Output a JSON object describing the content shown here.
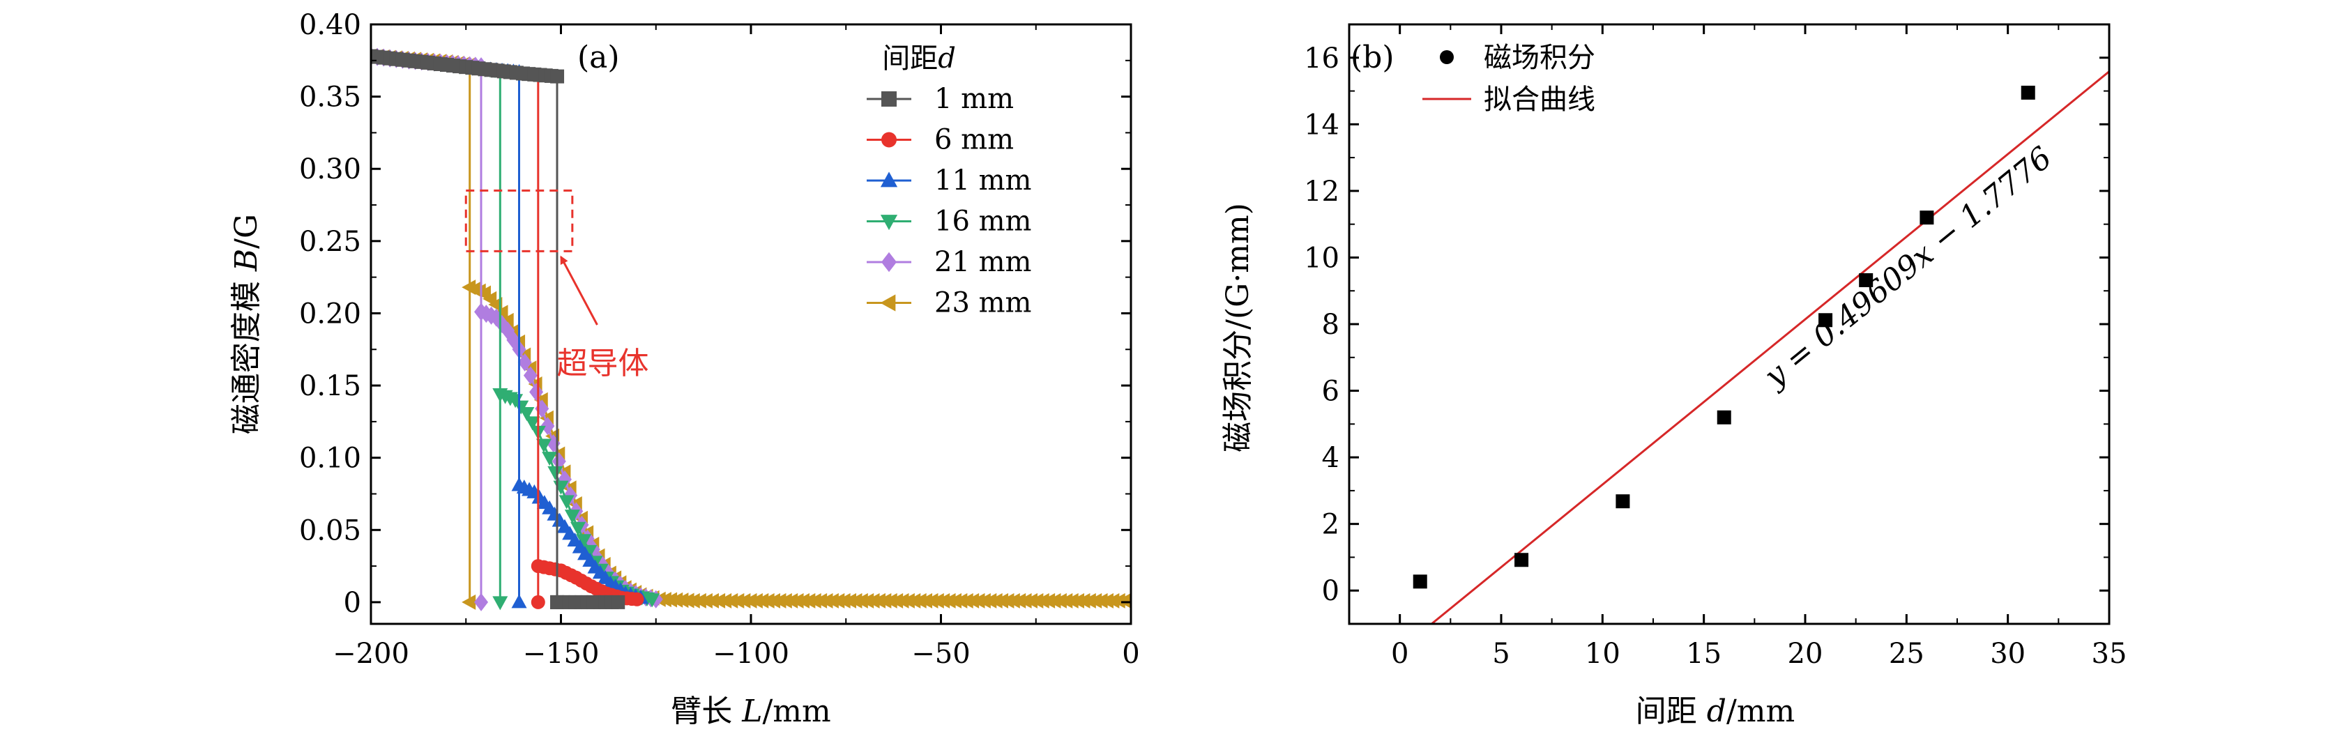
{
  "chart_data": [
    {
      "panel": "(a)",
      "type": "line",
      "xlabel_cn": "臂长",
      "xlabel_var": "L",
      "xlabel_unit": "/mm",
      "ylabel_cn": "磁通密度模",
      "ylabel_var": "B",
      "ylabel_unit": "/G",
      "xlim": [
        -200,
        0
      ],
      "ylim": [
        -0.015,
        0.4
      ],
      "xticks": [
        -200,
        -150,
        -100,
        -50,
        0
      ],
      "xtick_labels": [
        "−200",
        "−150",
        "−100",
        "−50",
        "0"
      ],
      "yticks": [
        0,
        0.05,
        0.1,
        0.15,
        0.2,
        0.25,
        0.3,
        0.35,
        0.4
      ],
      "ytick_labels": [
        "0",
        "0.05",
        "0.10",
        "0.15",
        "0.20",
        "0.25",
        "0.30",
        "0.35",
        "0.40"
      ],
      "legend_title": "间距",
      "legend_title_var": "d",
      "legend_position": "top-right",
      "annotation": {
        "text": "超导体",
        "box_x": [
          -175,
          -147
        ],
        "box_y": [
          0.243,
          0.285
        ],
        "arrow_tip": [
          -150,
          0.242
        ],
        "text_at": [
          -150,
          0.165
        ]
      },
      "series": [
        {
          "name": "1 mm",
          "color": "#555555",
          "marker": "square",
          "gap": [
            -151,
            -151
          ],
          "top_value": 0.364,
          "pre": [
            [
              -200,
              0.378
            ],
            [
              -190,
              0.375
            ],
            [
              -180,
              0.372
            ],
            [
              -170,
              0.369
            ],
            [
              -160,
              0.366
            ],
            [
              -151,
              0.364
            ]
          ],
          "post": [
            [
              -151,
              0.0
            ],
            [
              -135,
              0.0
            ]
          ]
        },
        {
          "name": "6 mm",
          "color": "#e8332c",
          "marker": "circle",
          "gap": [
            -156,
            -156
          ],
          "top_value": 0.365,
          "pre": [
            [
              -200,
              0.378
            ],
            [
              -190,
              0.375
            ],
            [
              -180,
              0.372
            ],
            [
              -170,
              0.369
            ],
            [
              -160,
              0.366
            ],
            [
              -156,
              0.365
            ]
          ],
          "post": [
            [
              -156,
              0.025
            ],
            [
              -150,
              0.022
            ],
            [
              -146,
              0.017
            ],
            [
              -142,
              0.011
            ],
            [
              -138,
              0.006
            ],
            [
              -134,
              0.003
            ],
            [
              -130,
              0.002
            ]
          ]
        },
        {
          "name": "11 mm",
          "color": "#1f5fd2",
          "marker": "triangle-up",
          "gap": [
            -161,
            -161
          ],
          "top_value": 0.367,
          "pre": [
            [
              -200,
              0.378
            ],
            [
              -190,
              0.375
            ],
            [
              -180,
              0.372
            ],
            [
              -170,
              0.369
            ],
            [
              -161,
              0.367
            ]
          ],
          "post": [
            [
              -161,
              0.081
            ],
            [
              -157,
              0.076
            ],
            [
              -153,
              0.065
            ],
            [
              -149,
              0.052
            ],
            [
              -145,
              0.038
            ],
            [
              -141,
              0.024
            ],
            [
              -137,
              0.013
            ],
            [
              -133,
              0.006
            ],
            [
              -129,
              0.003
            ]
          ]
        },
        {
          "name": "16 mm",
          "color": "#2fae72",
          "marker": "triangle-down",
          "gap": [
            -166,
            -166
          ],
          "top_value": 0.368,
          "pre": [
            [
              -200,
              0.378
            ],
            [
              -190,
              0.375
            ],
            [
              -180,
              0.372
            ],
            [
              -170,
              0.369
            ],
            [
              -166,
              0.368
            ]
          ],
          "post": [
            [
              -166,
              0.144
            ],
            [
              -162,
              0.14
            ],
            [
              -159,
              0.131
            ],
            [
              -156,
              0.118
            ],
            [
              -153,
              0.1
            ],
            [
              -150,
              0.08
            ],
            [
              -147,
              0.06
            ],
            [
              -144,
              0.043
            ],
            [
              -141,
              0.028
            ],
            [
              -138,
              0.017
            ],
            [
              -134,
              0.008
            ],
            [
              -130,
              0.004
            ],
            [
              -126,
              0.002
            ]
          ]
        },
        {
          "name": "21 mm",
          "color": "#b07de0",
          "marker": "diamond",
          "gap": [
            -171,
            -171
          ],
          "top_value": 0.371,
          "pre": [
            [
              -200,
              0.378
            ],
            [
              -190,
              0.375
            ],
            [
              -180,
              0.373
            ],
            [
              -171,
              0.371
            ]
          ],
          "post": [
            [
              -171,
              0.201
            ],
            [
              -167,
              0.197
            ],
            [
              -164,
              0.188
            ],
            [
              -161,
              0.175
            ],
            [
              -158,
              0.157
            ],
            [
              -155,
              0.134
            ],
            [
              -152,
              0.11
            ],
            [
              -149,
              0.085
            ],
            [
              -146,
              0.063
            ],
            [
              -143,
              0.044
            ],
            [
              -140,
              0.029
            ],
            [
              -137,
              0.018
            ],
            [
              -133,
              0.009
            ],
            [
              -129,
              0.004
            ],
            [
              -125,
              0.002
            ]
          ]
        },
        {
          "name": "23 mm",
          "color": "#c8961e",
          "marker": "triangle-left",
          "gap": [
            -174,
            -174
          ],
          "top_value": 0.372,
          "pre": [
            [
              -200,
              0.378
            ],
            [
              -190,
              0.376
            ],
            [
              -180,
              0.374
            ],
            [
              -174,
              0.372
            ]
          ],
          "post": [
            [
              -174,
              0.218
            ],
            [
              -170,
              0.214
            ],
            [
              -167,
              0.206
            ],
            [
              -164,
              0.195
            ],
            [
              -161,
              0.18
            ],
            [
              -158,
              0.162
            ],
            [
              -155,
              0.14
            ],
            [
              -152,
              0.115
            ],
            [
              -149,
              0.09
            ],
            [
              -146,
              0.068
            ],
            [
              -143,
              0.048
            ],
            [
              -140,
              0.032
            ],
            [
              -137,
              0.02
            ],
            [
              -133,
              0.01
            ],
            [
              -129,
              0.005
            ],
            [
              -124,
              0.002
            ],
            [
              -115,
              0.001
            ],
            [
              -100,
              0.001
            ],
            [
              -80,
              0.001
            ],
            [
              -60,
              0.001
            ],
            [
              -40,
              0.001
            ],
            [
              -20,
              0.001
            ],
            [
              0,
              0.001
            ]
          ]
        }
      ]
    },
    {
      "panel": "(b)",
      "type": "scatter",
      "xlabel_cn": "间距",
      "xlabel_var": "d",
      "xlabel_unit": "/mm",
      "ylabel": "磁场积分/(G·mm)",
      "xlim": [
        -2.5,
        35
      ],
      "ylim": [
        -1,
        17
      ],
      "xticks": [
        0,
        5,
        10,
        15,
        20,
        25,
        30,
        35
      ],
      "xtick_labels": [
        "0",
        "5",
        "10",
        "15",
        "20",
        "25",
        "30",
        "35"
      ],
      "yticks": [
        0,
        2,
        4,
        6,
        8,
        10,
        12,
        14,
        16
      ],
      "ytick_labels": [
        "0",
        "2",
        "4",
        "6",
        "8",
        "10",
        "12",
        "14",
        "16"
      ],
      "legend": [
        {
          "label": "磁场积分",
          "kind": "marker"
        },
        {
          "label": "拟合曲线",
          "kind": "line"
        }
      ],
      "legend_position": "top-left",
      "x": [
        1,
        6,
        11,
        16,
        21,
        23,
        26,
        31
      ],
      "y": [
        0.27,
        0.92,
        2.68,
        5.2,
        8.12,
        9.32,
        11.2,
        14.95
      ],
      "fit": {
        "slope": 0.49609,
        "intercept": -1.7776,
        "color": "#d62728",
        "equation": "y = 0.49609x − 1.7776"
      }
    }
  ]
}
